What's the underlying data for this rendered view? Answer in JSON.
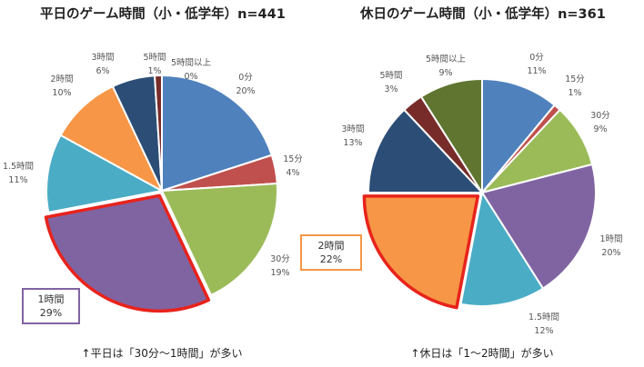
{
  "chart_data": [
    {
      "type": "pie",
      "title": "平日のゲーム時間（小・低学年）n=441",
      "categories": [
        "0分",
        "15分",
        "30分",
        "1時間",
        "1.5時間",
        "2時間",
        "3時間",
        "5時間",
        "5時間以上"
      ],
      "values": [
        20,
        4,
        19,
        29,
        11,
        10,
        6,
        1,
        0
      ],
      "highlight": "1時間",
      "highlight_color": "#8064a2",
      "note": "↑平日は「30分～1時間」が多い"
    },
    {
      "type": "pie",
      "title": "休日のゲーム時間（小・低学年）n=361",
      "categories": [
        "0分",
        "15分",
        "30分",
        "1時間",
        "1.5時間",
        "2時間",
        "3時間",
        "5時間",
        "5時間以上"
      ],
      "values": [
        11,
        1,
        9,
        20,
        12,
        22,
        13,
        3,
        9
      ],
      "highlight": "2時間",
      "highlight_color": "#f79646",
      "note": "↑休日は「1～2時間」が多い"
    }
  ],
  "colors": [
    "#4f81bd",
    "#c0504d",
    "#9bbb59",
    "#8064a2",
    "#4bacc6",
    "#f79646",
    "#2c4d75",
    "#772c2a",
    "#5f7530"
  ],
  "outline_color": "#e8231c"
}
